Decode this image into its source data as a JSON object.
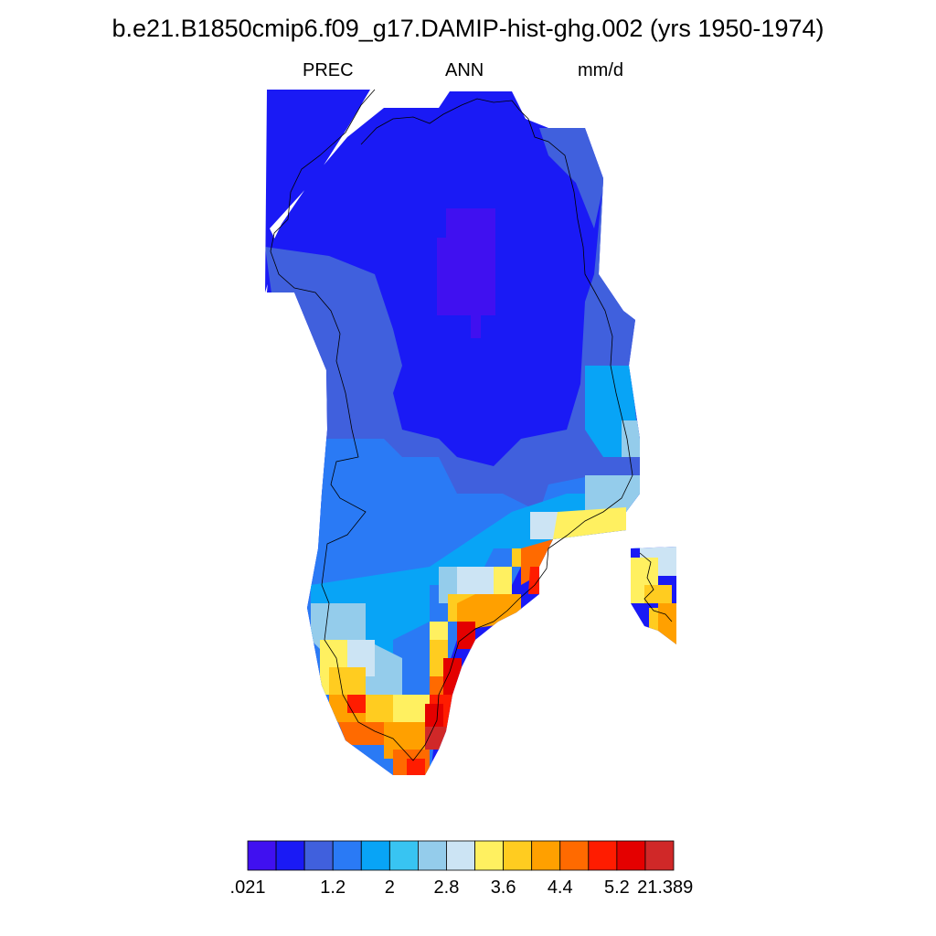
{
  "title": "b.e21.B1850cmip6.f09_g17.DAMIP-hist-ghg.002 (yrs 1950-1974)",
  "subtitle_left": "PREC",
  "subtitle_center": "ANN",
  "subtitle_right": "mm/d",
  "colorbar": {
    "colors": [
      "#4010f0",
      "#1a1af5",
      "#4060dd",
      "#2a7af5",
      "#08a4f6",
      "#38c4f2",
      "#94cceb",
      "#cce4f4",
      "#fff060",
      "#ffcc20",
      "#ffa000",
      "#ff6a00",
      "#ff1c00",
      "#e40000",
      "#d02828"
    ],
    "labels": [
      ".021",
      "1.2",
      "2",
      "2.8",
      "3.6",
      "4.4",
      "5.2",
      "21.389"
    ]
  },
  "legend": {
    "title": "",
    "labels": []
  },
  "region": "Greenland precipitation field (annual mean)"
}
